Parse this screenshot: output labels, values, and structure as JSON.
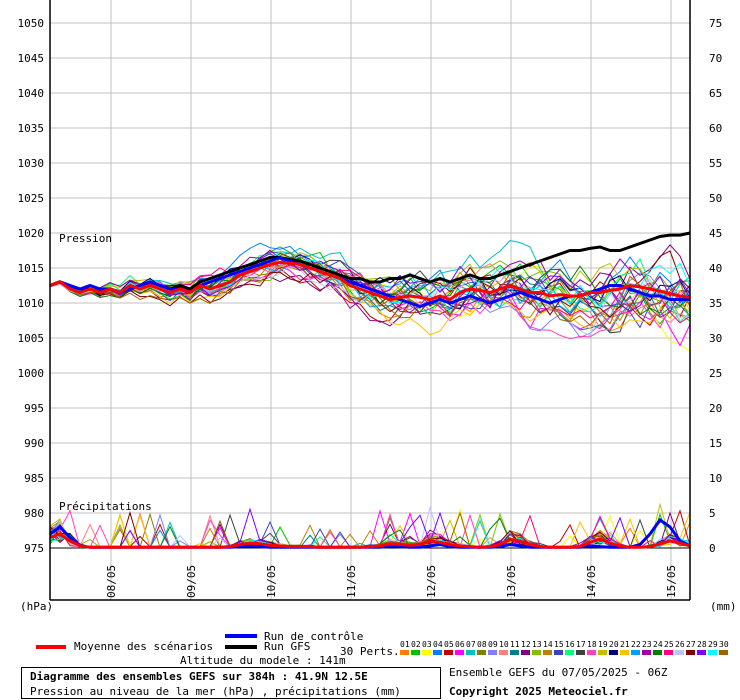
{
  "chart_data": {
    "type": "line",
    "title": "Diagramme des ensembles GEFS sur 384h : 41.9N 12.5E",
    "subtitle": "Pression au niveau de la mer (hPa) , précipitations (mm)",
    "altitude": "Altitude du modele : 141m",
    "run_info": "Ensemble GEFS du 07/05/2025 - 06Z",
    "copyright": "Copyright 2025 Meteociel.fr",
    "left_axis_unit": "(hPa)",
    "right_axis_unit": "(mm)",
    "left_ticks": [
      1050,
      1045,
      1040,
      1035,
      1030,
      1025,
      1020,
      1015,
      1010,
      1005,
      1000,
      995,
      990,
      985,
      980,
      975
    ],
    "right_ticks": [
      75,
      70,
      65,
      60,
      55,
      50,
      45,
      40,
      35,
      30,
      25,
      20,
      15,
      10,
      5,
      0
    ],
    "x_labels": [
      "08/05",
      "09/05",
      "10/05",
      "11/05",
      "12/05",
      "13/05",
      "14/05",
      "15/05"
    ],
    "panel_labels": {
      "pressure": "Pression",
      "precip": "Précipitations"
    },
    "series": [
      {
        "name": "Moyenne des scénarios",
        "color": "#ff0000",
        "variable": "pressure",
        "values": [
          1012.5,
          1013.0,
          1012.0,
          1011.5,
          1012.0,
          1011.5,
          1012.0,
          1011.5,
          1012.5,
          1012.0,
          1012.5,
          1012.0,
          1011.5,
          1012.0,
          1011.5,
          1012.5,
          1012.0,
          1012.5,
          1013.0,
          1014.0,
          1014.5,
          1015.0,
          1015.5,
          1015.8,
          1015.7,
          1015.5,
          1015.0,
          1014.5,
          1014.0,
          1013.5,
          1012.5,
          1012.0,
          1011.5,
          1011.0,
          1010.5,
          1010.8,
          1011.0,
          1010.8,
          1010.5,
          1011.0,
          1010.5,
          1011.5,
          1012.0,
          1011.8,
          1011.5,
          1012.0,
          1012.5,
          1012.0,
          1011.5,
          1011.5,
          1011.0,
          1011.2,
          1011.0,
          1011.0,
          1011.5,
          1011.5,
          1011.8,
          1012.0,
          1012.5,
          1012.3,
          1012.0,
          1011.7,
          1011.3,
          1011.0,
          1010.8
        ]
      },
      {
        "name": "Run de contrôle",
        "color": "#0000ff",
        "variable": "pressure",
        "values": [
          1012.5,
          1013.0,
          1012.5,
          1012.0,
          1012.5,
          1012.0,
          1012.0,
          1011.5,
          1012.0,
          1012.5,
          1013.0,
          1012.5,
          1012.0,
          1012.0,
          1011.5,
          1012.5,
          1013.0,
          1013.5,
          1014.0,
          1014.5,
          1015.0,
          1015.5,
          1016.0,
          1016.5,
          1016.0,
          1015.5,
          1015.0,
          1014.5,
          1014.0,
          1013.5,
          1013.0,
          1012.5,
          1012.0,
          1011.5,
          1011.0,
          1010.5,
          1010.0,
          1009.5,
          1010.0,
          1010.5,
          1010.0,
          1010.5,
          1011.0,
          1010.5,
          1010.0,
          1010.5,
          1011.0,
          1011.5,
          1011.0,
          1010.5,
          1010.0,
          1010.5,
          1011.0,
          1011.0,
          1011.5,
          1012.0,
          1012.5,
          1012.5,
          1012.0,
          1011.5,
          1011.0,
          1011.0,
          1010.5,
          1010.5,
          1010.5
        ]
      },
      {
        "name": "Run GFS",
        "color": "#000000",
        "variable": "pressure",
        "values": [
          1012.5,
          1013.0,
          1012.5,
          1012.0,
          1012.0,
          1011.5,
          1012.0,
          1011.5,
          1012.0,
          1012.5,
          1013.0,
          1012.5,
          1012.0,
          1012.5,
          1012.0,
          1013.0,
          1013.5,
          1014.0,
          1014.5,
          1015.0,
          1015.5,
          1016.0,
          1016.5,
          1016.5,
          1016.2,
          1016.0,
          1015.5,
          1015.0,
          1014.5,
          1014.0,
          1013.5,
          1013.5,
          1013.0,
          1013.0,
          1013.5,
          1013.5,
          1014.0,
          1013.5,
          1013.0,
          1013.5,
          1013.0,
          1013.5,
          1014.0,
          1013.5,
          1013.5,
          1014.0,
          1014.5,
          1015.0,
          1015.5,
          1016.0,
          1016.5,
          1017.0,
          1017.5,
          1017.5,
          1017.8,
          1018.0,
          1017.5,
          1017.5,
          1018.0,
          1018.5,
          1019.0,
          1019.5,
          1019.7,
          1019.7,
          1020.0
        ]
      }
    ],
    "precip_series": [
      {
        "name": "Moyenne des scénarios",
        "color": "#ff0000",
        "values": [
          1.5,
          2.0,
          1.0,
          0.3,
          0.1,
          0.1,
          0.1,
          0.1,
          0.1,
          0.1,
          0.1,
          0.1,
          0.1,
          0.1,
          0.1,
          0.1,
          0.1,
          0.1,
          0.2,
          0.5,
          0.7,
          0.6,
          0.4,
          0.3,
          0.2,
          0.2,
          0.2,
          0.1,
          0.1,
          0.1,
          0.1,
          0.1,
          0.2,
          0.3,
          0.6,
          0.5,
          0.4,
          0.5,
          1.0,
          0.8,
          0.5,
          0.3,
          0.2,
          0.1,
          0.2,
          0.5,
          1.2,
          1.0,
          0.5,
          0.2,
          0.1,
          0.1,
          0.1,
          0.2,
          0.8,
          1.3,
          0.7,
          0.3,
          0.1,
          0.1,
          0.2,
          0.6,
          1.0,
          0.7,
          0.3
        ]
      },
      {
        "name": "Run de contrôle",
        "color": "#0000ff",
        "values": [
          2.0,
          3.0,
          1.5,
          0.3,
          0.1,
          0.1,
          0.1,
          0.1,
          0.1,
          0.1,
          0.1,
          0.1,
          0.1,
          0.1,
          0.1,
          0.1,
          0.1,
          0.1,
          0.1,
          0.2,
          0.3,
          0.2,
          0.1,
          0.1,
          0.1,
          0.1,
          0.1,
          0.1,
          0.1,
          0.1,
          0.1,
          0.1,
          0.1,
          0.1,
          0.3,
          0.2,
          0.1,
          0.1,
          0.3,
          0.5,
          0.2,
          0.1,
          0.1,
          0.1,
          0.1,
          0.2,
          0.5,
          0.3,
          0.1,
          0.1,
          0.1,
          0.1,
          0.1,
          0.1,
          0.3,
          0.2,
          0.1,
          0.1,
          0.1,
          0.5,
          2.0,
          4.0,
          3.0,
          1.0,
          0.3
        ]
      }
    ],
    "ensemble_count": "30 Perts.",
    "ensemble_members": [
      "01",
      "02",
      "03",
      "04",
      "05",
      "06",
      "07",
      "08",
      "09",
      "10",
      "11",
      "12",
      "13",
      "14",
      "15",
      "16",
      "17",
      "18",
      "19",
      "20",
      "21",
      "22",
      "23",
      "24",
      "25",
      "26",
      "27",
      "28",
      "29",
      "30"
    ],
    "ensemble_colors": [
      "#ff8000",
      "#00c000",
      "#ffff00",
      "#0080ff",
      "#c00000",
      "#ff00ff",
      "#00c0c0",
      "#808000",
      "#8080ff",
      "#ff8080",
      "#008080",
      "#800080",
      "#80c000",
      "#c08000",
      "#4040c0",
      "#00ff80",
      "#404040",
      "#ff40c0",
      "#c0c000",
      "#000080",
      "#ffc000",
      "#00a0ff",
      "#a000a0",
      "#008000",
      "#ff0080",
      "#c0c0ff",
      "#800000",
      "#8000ff",
      "#00ffff",
      "#a06000"
    ]
  },
  "legend": {
    "mean_label": "Moyenne des scénarios",
    "control_label": "Run de contrôle",
    "gfs_label": "Run GFS"
  }
}
